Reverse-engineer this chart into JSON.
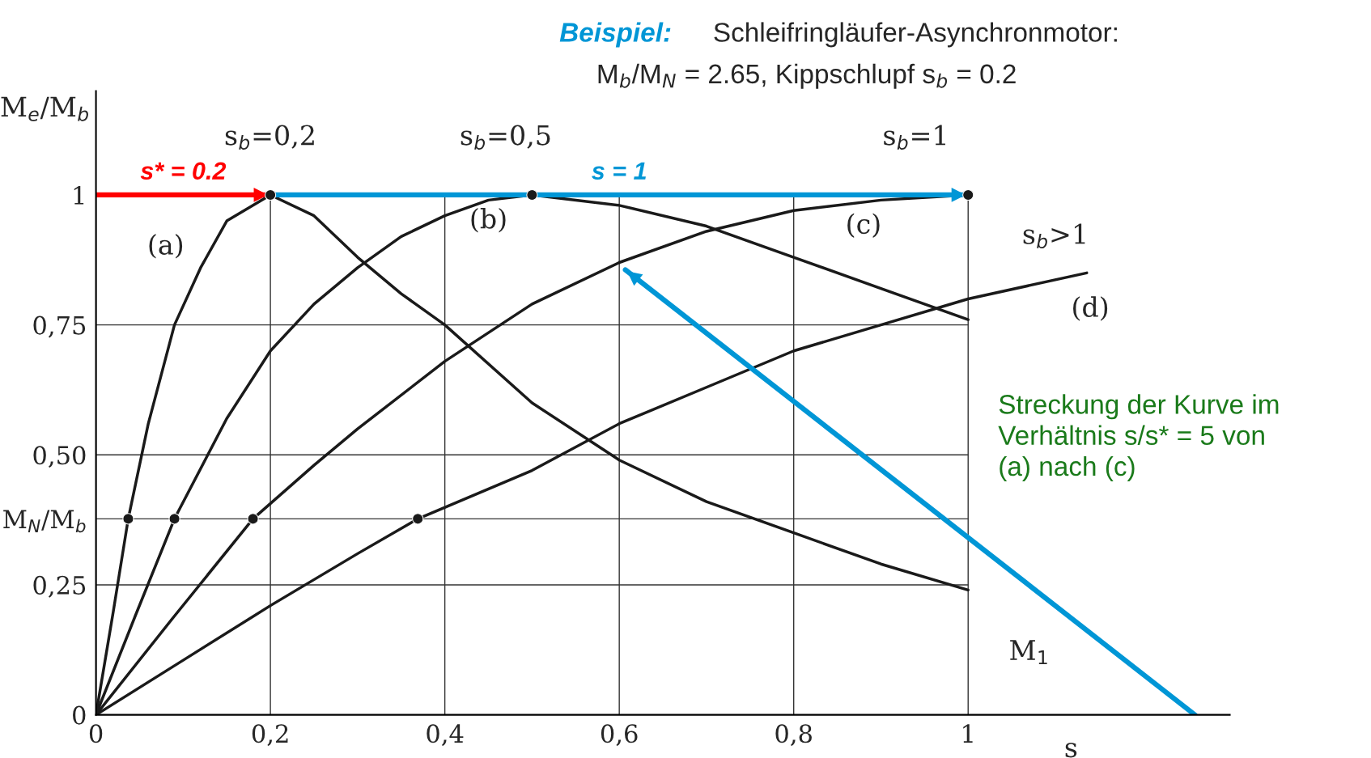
{
  "chart_data": {
    "type": "line",
    "title": "Beispiel:",
    "subtitle": "Schleifringläufer-Asynchronmotor:",
    "xlabel": "s",
    "ylabel": "M$_{e}$/M$_{b}$",
    "xlim": [
      0,
      1.3
    ],
    "ylim": [
      0,
      1.2
    ],
    "xticks": [
      0,
      {
        "value": 0.2,
        "label": "0,2"
      },
      {
        "value": 0.4,
        "label": "0,4"
      },
      {
        "value": 0.6,
        "label": "0,6"
      },
      {
        "value": 0.8,
        "label": "0,8"
      },
      1
    ],
    "yticks": [
      0,
      {
        "value": 0.25,
        "label": "0,25"
      },
      {
        "value": 0.377,
        "label": "M$_{N}$/M$_{b}$"
      },
      {
        "value": 0.5,
        "label": "0,50"
      },
      {
        "value": 0.75,
        "label": "0,75"
      },
      1
    ],
    "grid": true,
    "legend": false,
    "series": [
      {
        "color": "#1a1a1a",
        "x": [
          0,
          0.02,
          0.037,
          0.06,
          0.09,
          0.12,
          0.15,
          0.2,
          0.25,
          0.3,
          0.35,
          0.4,
          0.5,
          0.6,
          0.7,
          0.8,
          0.9,
          1.0
        ],
        "values": [
          0,
          0.2,
          0.377,
          0.56,
          0.75,
          0.86,
          0.95,
          1.0,
          0.96,
          0.88,
          0.81,
          0.75,
          0.6,
          0.49,
          0.41,
          0.35,
          0.29,
          0.24
        ]
      },
      {
        "color": "#1a1a1a",
        "x": [
          0,
          0.045,
          0.09,
          0.15,
          0.2,
          0.25,
          0.3,
          0.35,
          0.4,
          0.45,
          0.5,
          0.6,
          0.7,
          0.8,
          0.9,
          1.0
        ],
        "values": [
          0,
          0.19,
          0.377,
          0.57,
          0.7,
          0.79,
          0.86,
          0.92,
          0.96,
          0.99,
          1.0,
          0.98,
          0.94,
          0.88,
          0.82,
          0.76
        ]
      },
      {
        "color": "#1a1a1a",
        "x": [
          0,
          0.09,
          0.18,
          0.25,
          0.3,
          0.4,
          0.5,
          0.6,
          0.7,
          0.8,
          0.9,
          1.0
        ],
        "values": [
          0,
          0.19,
          0.377,
          0.48,
          0.55,
          0.68,
          0.79,
          0.87,
          0.93,
          0.97,
          0.99,
          1.0
        ]
      },
      {
        "color": "#1a1a1a",
        "x": [
          0,
          0.1,
          0.2,
          0.3,
          0.369,
          0.5,
          0.6,
          0.7,
          0.8,
          0.9,
          1.0,
          1.136
        ],
        "values": [
          0,
          0.105,
          0.21,
          0.31,
          0.377,
          0.47,
          0.56,
          0.63,
          0.7,
          0.75,
          0.8,
          0.85
        ]
      },
      {
        "type": "scatter",
        "marker": "circle",
        "color": "#1a1a1a",
        "x": [
          0.037,
          0.09,
          0.18,
          0.369,
          0.2,
          0.5,
          1.0
        ],
        "values": [
          0.377,
          0.377,
          0.377,
          0.377,
          1.0,
          1.0,
          1.0
        ]
      },
      {
        "name": "s* = 0.2",
        "color": "#ff0000",
        "line_style": "solid",
        "x": [
          0,
          0.2
        ],
        "values": [
          1.0,
          1.0
        ]
      },
      {
        "name": "s = 1",
        "color": "#0096d6",
        "line_style": "solid",
        "x": [
          0.2,
          1.0
        ],
        "values": [
          1.0,
          1.0
        ]
      },
      {
        "color": "#0096d6",
        "line_style": "solid",
        "x": [
          1.26,
          0.607
        ],
        "values": [
          0,
          0.856
        ]
      }
    ],
    "annotations": [
      "M$_{b}$/M$_{N}$ = 2.65, Kippschlupf s$_{b}$ = 0.2",
      "Streckung der Kurve im\nVerhältnis s/s* = 5 von\n(a) nach (c)",
      "(a)",
      "(b)",
      "(c)",
      "(d)",
      "s$_{b}$=0,2",
      "s$_{b}$=0,5",
      "s$_{b}$=1",
      "s$_{b}$>1",
      "M$_{1}$"
    ]
  }
}
